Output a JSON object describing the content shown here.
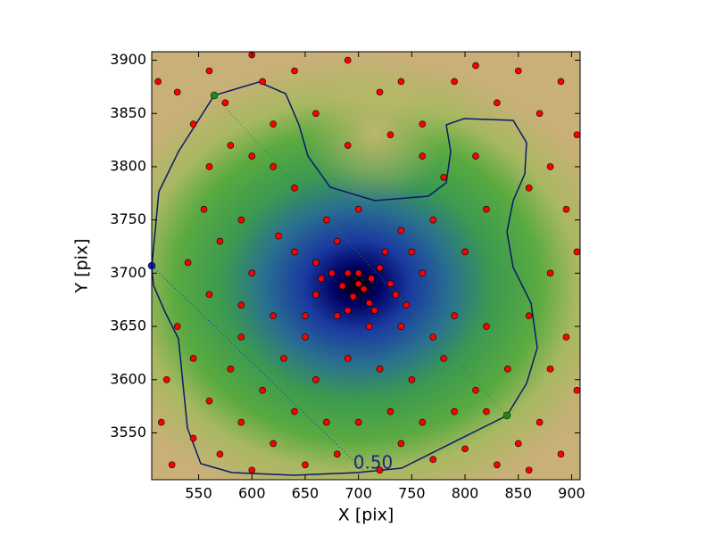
{
  "chart_data": {
    "type": "scatter",
    "xlabel": "X [pix]",
    "ylabel": "Y [pix]",
    "xlim": [
      506,
      908
    ],
    "ylim": [
      3506,
      3908
    ],
    "xticks": [
      550,
      600,
      650,
      700,
      750,
      800,
      850,
      900
    ],
    "yticks": [
      3550,
      3600,
      3650,
      3700,
      3750,
      3800,
      3850,
      3900
    ],
    "contour_label": "0.50",
    "color": "#ff0000",
    "x": [
      700,
      705,
      690,
      712,
      695,
      720,
      685,
      710,
      730,
      675,
      660,
      745,
      760,
      650,
      640,
      625,
      600,
      590,
      570,
      555,
      540,
      530,
      520,
      515,
      512,
      530,
      560,
      575,
      600,
      610,
      620,
      640,
      660,
      690,
      720,
      740,
      760,
      790,
      810,
      830,
      850,
      870,
      890,
      905,
      880,
      860,
      895,
      905,
      880,
      860,
      895,
      880,
      905,
      870,
      850,
      890,
      860,
      830,
      800,
      770,
      740,
      720,
      700,
      680,
      650,
      620,
      600,
      570,
      545,
      525,
      560,
      580,
      610,
      630,
      660,
      690,
      720,
      750,
      780,
      810,
      840,
      820,
      790,
      770,
      740,
      710,
      680,
      650,
      620,
      590,
      560,
      545,
      590,
      640,
      670,
      730,
      760,
      790,
      820,
      800,
      820,
      780,
      810,
      770,
      740,
      700,
      670,
      640,
      620,
      600,
      580,
      560,
      545,
      690,
      730,
      760,
      590,
      660,
      725,
      750,
      680,
      715,
      735,
      700,
      690,
      665
    ],
    "values": [
      3690,
      3685,
      3700,
      3695,
      3678,
      3705,
      3688,
      3672,
      3690,
      3700,
      3680,
      3670,
      3700,
      3660,
      3720,
      3735,
      3700,
      3750,
      3730,
      3760,
      3710,
      3650,
      3600,
      3560,
      3880,
      3870,
      3890,
      3860,
      3905,
      3880,
      3840,
      3890,
      3850,
      3900,
      3870,
      3880,
      3840,
      3880,
      3895,
      3860,
      3890,
      3850,
      3880,
      3830,
      3800,
      3780,
      3760,
      3720,
      3700,
      3660,
      3640,
      3610,
      3590,
      3560,
      3540,
      3530,
      3515,
      3520,
      3535,
      3525,
      3540,
      3515,
      3560,
      3530,
      3520,
      3540,
      3515,
      3530,
      3545,
      3520,
      3580,
      3610,
      3590,
      3620,
      3600,
      3620,
      3610,
      3600,
      3620,
      3590,
      3610,
      3650,
      3660,
      3640,
      3650,
      3650,
      3660,
      3640,
      3660,
      3670,
      3680,
      3620,
      3560,
      3570,
      3560,
      3570,
      3560,
      3570,
      3570,
      3720,
      3760,
      3790,
      3810,
      3750,
      3740,
      3760,
      3750,
      3780,
      3800,
      3810,
      3820,
      3800,
      3840,
      3820,
      3830,
      3810,
      3640,
      3710,
      3720,
      3720,
      3730,
      3665,
      3680,
      3700,
      3665,
      3695
    ]
  }
}
